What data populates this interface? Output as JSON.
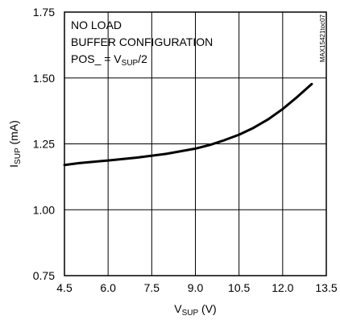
{
  "chart_data": {
    "type": "line",
    "title": "",
    "xlabel": {
      "main": "V",
      "sub": "SUP",
      "tail": " (V)"
    },
    "ylabel": {
      "main": "I",
      "sub": "SUP",
      "tail": " (mA)"
    },
    "xlim": [
      4.5,
      13.5
    ],
    "ylim": [
      0.75,
      1.75
    ],
    "x_ticks": [
      4.5,
      6.0,
      7.5,
      9.0,
      10.5,
      12.0,
      13.5
    ],
    "x_tick_labels": [
      "4.5",
      "6.0",
      "7.5",
      "9.0",
      "10.5",
      "12.0",
      "13.5"
    ],
    "y_ticks": [
      0.75,
      1.0,
      1.25,
      1.5,
      1.75
    ],
    "y_tick_labels": [
      "0.75",
      "1.00",
      "1.25",
      "1.50",
      "1.75"
    ],
    "grid": true,
    "annotations": {
      "line1": "NO LOAD",
      "line2": "BUFFER CONFIGURATION",
      "line3_pre": "POS_ = V",
      "line3_sub": "SUP",
      "line3_post": "/2"
    },
    "side_code": "MAX15421toc07",
    "series": [
      {
        "color": "#000000",
        "x": [
          4.5,
          5.0,
          6.0,
          7.0,
          8.0,
          9.0,
          9.5,
          10.0,
          10.5,
          11.0,
          11.5,
          12.0,
          12.5,
          13.0
        ],
        "y": [
          1.17,
          1.177,
          1.187,
          1.198,
          1.212,
          1.232,
          1.246,
          1.264,
          1.285,
          1.311,
          1.343,
          1.382,
          1.428,
          1.477
        ]
      }
    ]
  }
}
